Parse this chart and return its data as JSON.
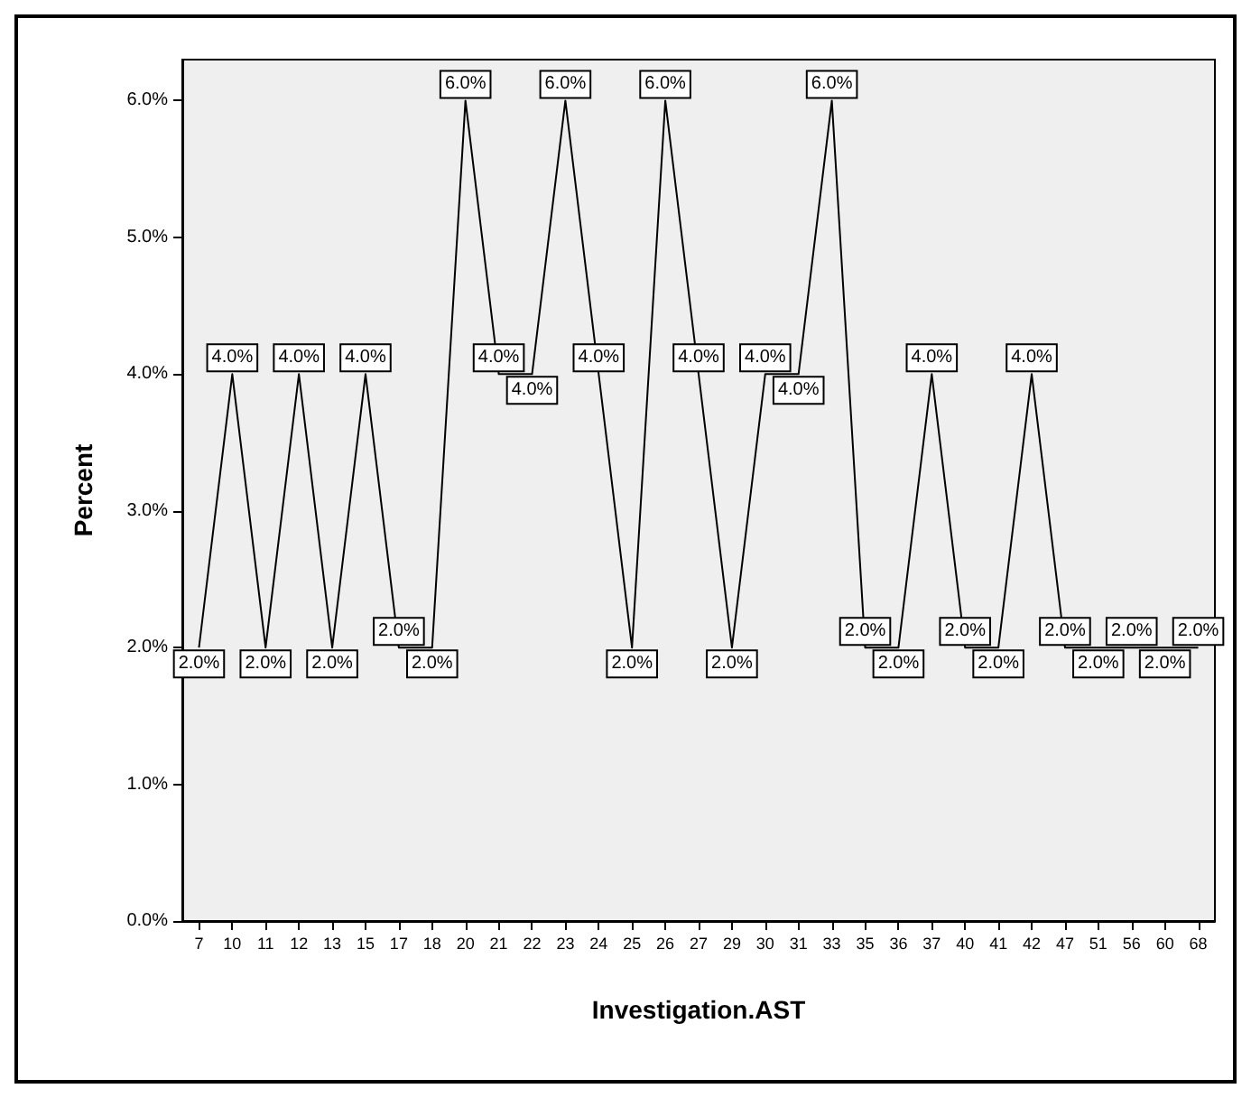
{
  "chart_data": {
    "type": "line",
    "xlabel": "Investigation.AST",
    "ylabel": "Percent",
    "categories": [
      "7",
      "10",
      "11",
      "12",
      "13",
      "15",
      "17",
      "18",
      "20",
      "21",
      "22",
      "23",
      "24",
      "25",
      "26",
      "27",
      "29",
      "30",
      "31",
      "33",
      "35",
      "36",
      "37",
      "40",
      "41",
      "42",
      "47",
      "51",
      "56",
      "60",
      "68"
    ],
    "series": [
      {
        "color": "#000000",
        "values": [
          2,
          4,
          2,
          4,
          2,
          4,
          2,
          2,
          6,
          4,
          4,
          6,
          4,
          2,
          6,
          4,
          2,
          4,
          4,
          6,
          2,
          2,
          4,
          2,
          2,
          4,
          2,
          2,
          2,
          2,
          2
        ],
        "value_labels": [
          "2.0%",
          "4.0%",
          "2.0%",
          "4.0%",
          "2.0%",
          "4.0%",
          "2.0%",
          "2.0%",
          "6.0%",
          "4.0%",
          "4.0%",
          "6.0%",
          "4.0%",
          "2.0%",
          "6.0%",
          "4.0%",
          "2.0%",
          "4.0%",
          "4.0%",
          "6.0%",
          "2.0%",
          "2.0%",
          "4.0%",
          "2.0%",
          "2.0%",
          "4.0%",
          "2.0%",
          "2.0%",
          "2.0%",
          "2.0%",
          "2.0%"
        ]
      }
    ],
    "ylim": [
      0,
      6.3
    ],
    "yticks": [
      {
        "value": 0,
        "label": "0.0%"
      },
      {
        "value": 1,
        "label": "1.0%"
      },
      {
        "value": 2,
        "label": "2.0%"
      },
      {
        "value": 3,
        "label": "3.0%"
      },
      {
        "value": 4,
        "label": "4.0%"
      },
      {
        "value": 5,
        "label": "5.0%"
      },
      {
        "value": 6,
        "label": "6.0%"
      }
    ],
    "grid": false,
    "marker": "none",
    "line_style": "solid"
  }
}
